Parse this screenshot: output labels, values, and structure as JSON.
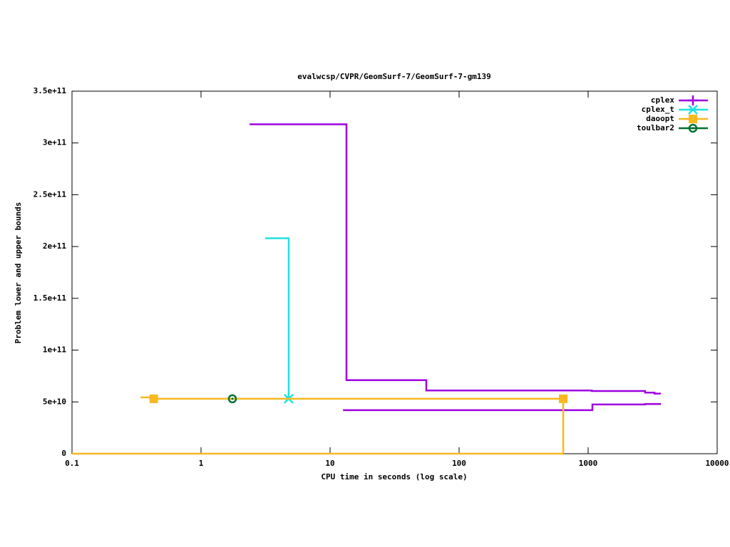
{
  "chart_data": {
    "type": "step",
    "title": "evalwcsp/CVPR/GeomSurf-7/GeomSurf-7-gm139",
    "x_label": "CPU time in seconds (log scale)",
    "y_label": "Problem lower and upper bounds",
    "xscale": "log",
    "xlim": [
      0.1,
      10000
    ],
    "xticks": [
      0.1,
      1,
      10,
      100,
      1000,
      10000
    ],
    "ylim": [
      0,
      350000000000
    ],
    "yticks": [
      0,
      {
        "value": 50000000000,
        "label": "5e+10"
      },
      {
        "value": 100000000000,
        "label": "1e+11"
      },
      {
        "value": 150000000000,
        "label": "1.5e+11"
      },
      {
        "value": 200000000000,
        "label": "2e+11"
      },
      {
        "value": 250000000000,
        "label": "2.5e+11"
      },
      {
        "value": 300000000000,
        "label": "3e+11"
      },
      {
        "value": 350000000000,
        "label": "3.5e+11"
      }
    ],
    "legend": "top-right",
    "series": [
      {
        "name": "cplex",
        "color": "#a000e0",
        "marker": "plus",
        "upper": {
          "x": [
            2.38,
            13.4,
            55.7,
            1066,
            2767,
            3265,
            3614
          ],
          "y": [
            318000000000,
            71000000000,
            61000000000,
            60500000000,
            59000000000,
            58000000000,
            57500000000
          ]
        },
        "lower": {
          "x": [
            12.6,
            1079,
            2767,
            3614
          ],
          "y": [
            42000000000,
            47500000000,
            48000000000,
            48800000000
          ]
        },
        "markers": {
          "x": [],
          "y": []
        }
      },
      {
        "name": "cplex_t",
        "color": "#20e0e0",
        "marker": "star",
        "upper": {
          "x": [
            3.14,
            4.78
          ],
          "y": [
            208000000000,
            53000000000
          ]
        },
        "lower": {
          "x": [],
          "y": []
        },
        "markers": {
          "x": [
            4.78
          ],
          "y": [
            53000000000
          ]
        }
      },
      {
        "name": "daoopt",
        "color": "#f8b820",
        "marker": "square",
        "upper": {
          "x": [
            0.34,
            0.43,
            641
          ],
          "y": [
            54300000000,
            53000000000,
            0
          ]
        },
        "lower": {
          "x": [
            0.1,
            641
          ],
          "y": [
            0,
            0
          ]
        },
        "markers": {
          "x": [
            0.43,
            641
          ],
          "y": [
            53000000000,
            53000000000
          ]
        }
      },
      {
        "name": "toulbar2",
        "color": "#007030",
        "marker": "circle",
        "upper": {
          "x": [
            1.75
          ],
          "y": [
            53000000000
          ]
        },
        "lower": {
          "x": [],
          "y": []
        },
        "markers": {
          "x": [
            1.75
          ],
          "y": [
            53000000000
          ]
        }
      }
    ]
  }
}
